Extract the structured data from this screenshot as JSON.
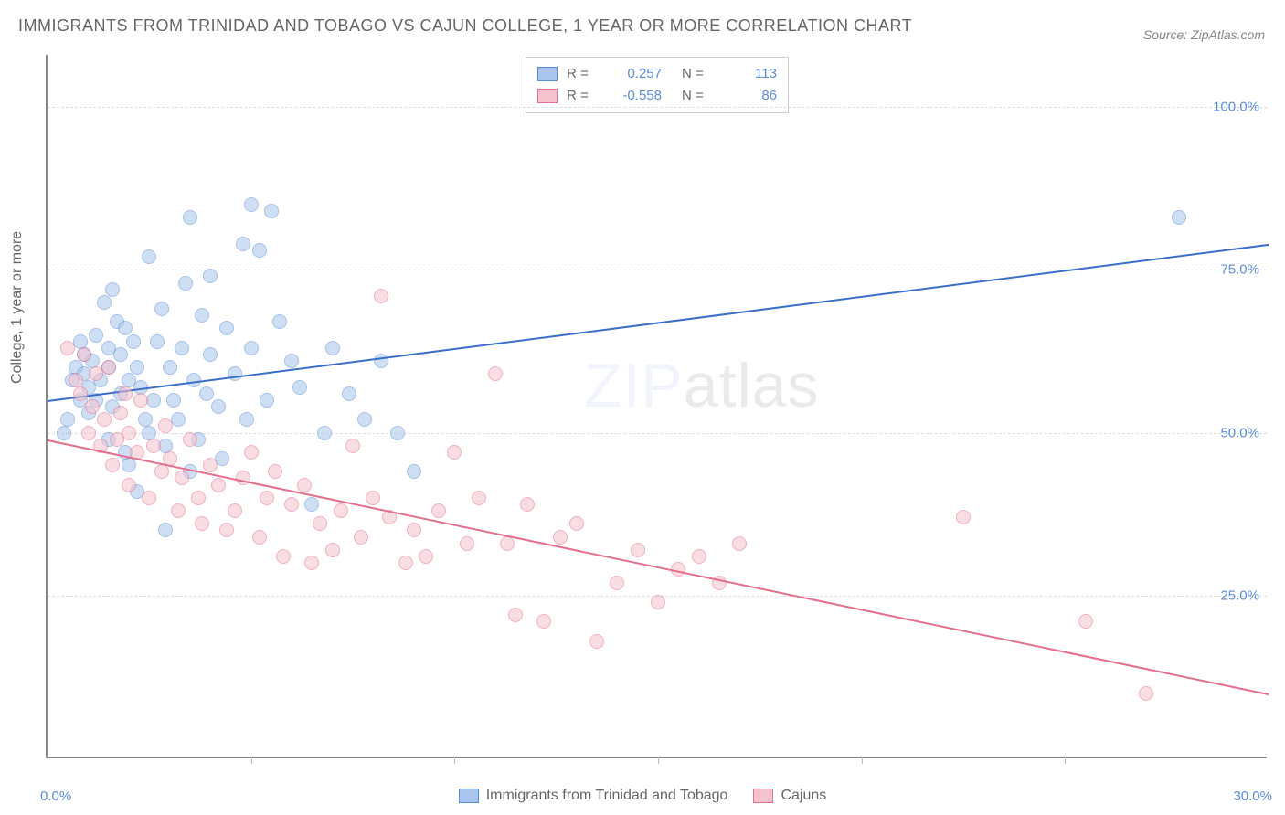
{
  "title": "IMMIGRANTS FROM TRINIDAD AND TOBAGO VS CAJUN COLLEGE, 1 YEAR OR MORE CORRELATION CHART",
  "source": "Source: ZipAtlas.com",
  "y_label": "College, 1 year or more",
  "watermark": {
    "prefix": "ZIP",
    "suffix": "atlas"
  },
  "chart": {
    "type": "scatter",
    "xlim": [
      0,
      30
    ],
    "ylim": [
      0,
      108
    ],
    "x_axis_labels": [
      {
        "v": 0,
        "label": "0.0%",
        "pos": "outer-left"
      },
      {
        "v": 30,
        "label": "30.0%",
        "pos": "outer-right"
      }
    ],
    "x_tick_positions": [
      5,
      10,
      15,
      20,
      25
    ],
    "y_ticks": [
      {
        "v": 25,
        "label": "25.0%"
      },
      {
        "v": 50,
        "label": "50.0%"
      },
      {
        "v": 75,
        "label": "75.0%"
      },
      {
        "v": 100,
        "label": "100.0%"
      }
    ],
    "background_color": "#ffffff",
    "grid_color": "#dddddd",
    "axis_color": "#888888",
    "tick_label_color": "#5b8dd6",
    "marker_radius": 8,
    "marker_opacity": 0.55,
    "series": [
      {
        "name": "Immigrants from Trinidad and Tobago",
        "fill": "#a9c5eb",
        "stroke": "#5b8dd6",
        "line_color": "#3a6fc9",
        "r": 0.257,
        "n": 113,
        "trend": {
          "x1": 0,
          "y1": 55,
          "x2": 30,
          "y2": 79
        },
        "points": [
          [
            0.4,
            50
          ],
          [
            0.5,
            52
          ],
          [
            0.6,
            58
          ],
          [
            0.7,
            60
          ],
          [
            0.8,
            64
          ],
          [
            0.8,
            55
          ],
          [
            0.9,
            59
          ],
          [
            0.9,
            62
          ],
          [
            1.0,
            53
          ],
          [
            1.0,
            57
          ],
          [
            1.1,
            61
          ],
          [
            1.2,
            65
          ],
          [
            1.2,
            55
          ],
          [
            1.3,
            58
          ],
          [
            1.4,
            70
          ],
          [
            1.5,
            49
          ],
          [
            1.5,
            60
          ],
          [
            1.5,
            63
          ],
          [
            1.6,
            72
          ],
          [
            1.6,
            54
          ],
          [
            1.7,
            67
          ],
          [
            1.8,
            56
          ],
          [
            1.8,
            62
          ],
          [
            1.9,
            47
          ],
          [
            1.9,
            66
          ],
          [
            2.0,
            58
          ],
          [
            2.0,
            45
          ],
          [
            2.1,
            64
          ],
          [
            2.2,
            41
          ],
          [
            2.2,
            60
          ],
          [
            2.3,
            57
          ],
          [
            2.4,
            52
          ],
          [
            2.5,
            77
          ],
          [
            2.5,
            50
          ],
          [
            2.6,
            55
          ],
          [
            2.7,
            64
          ],
          [
            2.8,
            69
          ],
          [
            2.9,
            35
          ],
          [
            2.9,
            48
          ],
          [
            3.0,
            60
          ],
          [
            3.1,
            55
          ],
          [
            3.2,
            52
          ],
          [
            3.3,
            63
          ],
          [
            3.4,
            73
          ],
          [
            3.5,
            44
          ],
          [
            3.5,
            83
          ],
          [
            3.6,
            58
          ],
          [
            3.7,
            49
          ],
          [
            3.8,
            68
          ],
          [
            3.9,
            56
          ],
          [
            4.0,
            62
          ],
          [
            4.0,
            74
          ],
          [
            4.2,
            54
          ],
          [
            4.3,
            46
          ],
          [
            4.4,
            66
          ],
          [
            4.6,
            59
          ],
          [
            4.8,
            79
          ],
          [
            4.9,
            52
          ],
          [
            5.0,
            85
          ],
          [
            5.0,
            63
          ],
          [
            5.2,
            78
          ],
          [
            5.4,
            55
          ],
          [
            5.5,
            84
          ],
          [
            5.7,
            67
          ],
          [
            6.0,
            61
          ],
          [
            6.2,
            57
          ],
          [
            6.5,
            39
          ],
          [
            6.8,
            50
          ],
          [
            7.0,
            63
          ],
          [
            7.4,
            56
          ],
          [
            7.8,
            52
          ],
          [
            8.2,
            61
          ],
          [
            8.6,
            50
          ],
          [
            9.0,
            44
          ],
          [
            27.8,
            83
          ]
        ]
      },
      {
        "name": "Cajuns",
        "fill": "#f4c2cd",
        "stroke": "#e56f8c",
        "line_color": "#e56f8c",
        "r": -0.558,
        "n": 86,
        "trend": {
          "x1": 0,
          "y1": 49,
          "x2": 30,
          "y2": 10
        },
        "points": [
          [
            0.5,
            63
          ],
          [
            0.7,
            58
          ],
          [
            0.8,
            56
          ],
          [
            0.9,
            62
          ],
          [
            1.0,
            50
          ],
          [
            1.1,
            54
          ],
          [
            1.2,
            59
          ],
          [
            1.3,
            48
          ],
          [
            1.4,
            52
          ],
          [
            1.5,
            60
          ],
          [
            1.6,
            45
          ],
          [
            1.7,
            49
          ],
          [
            1.8,
            53
          ],
          [
            1.9,
            56
          ],
          [
            2.0,
            50
          ],
          [
            2.0,
            42
          ],
          [
            2.2,
            47
          ],
          [
            2.3,
            55
          ],
          [
            2.5,
            40
          ],
          [
            2.6,
            48
          ],
          [
            2.8,
            44
          ],
          [
            2.9,
            51
          ],
          [
            3.0,
            46
          ],
          [
            3.2,
            38
          ],
          [
            3.3,
            43
          ],
          [
            3.5,
            49
          ],
          [
            3.7,
            40
          ],
          [
            3.8,
            36
          ],
          [
            4.0,
            45
          ],
          [
            4.2,
            42
          ],
          [
            4.4,
            35
          ],
          [
            4.6,
            38
          ],
          [
            4.8,
            43
          ],
          [
            5.0,
            47
          ],
          [
            5.2,
            34
          ],
          [
            5.4,
            40
          ],
          [
            5.6,
            44
          ],
          [
            5.8,
            31
          ],
          [
            6.0,
            39
          ],
          [
            6.3,
            42
          ],
          [
            6.5,
            30
          ],
          [
            6.7,
            36
          ],
          [
            7.0,
            32
          ],
          [
            7.2,
            38
          ],
          [
            7.5,
            48
          ],
          [
            7.7,
            34
          ],
          [
            8.0,
            40
          ],
          [
            8.2,
            71
          ],
          [
            8.4,
            37
          ],
          [
            8.8,
            30
          ],
          [
            9.0,
            35
          ],
          [
            9.3,
            31
          ],
          [
            9.6,
            38
          ],
          [
            10.0,
            47
          ],
          [
            10.3,
            33
          ],
          [
            10.6,
            40
          ],
          [
            11.0,
            59
          ],
          [
            11.3,
            33
          ],
          [
            11.5,
            22
          ],
          [
            11.8,
            39
          ],
          [
            12.2,
            21
          ],
          [
            12.6,
            34
          ],
          [
            13.0,
            36
          ],
          [
            13.5,
            18
          ],
          [
            14.0,
            27
          ],
          [
            14.5,
            32
          ],
          [
            15.0,
            24
          ],
          [
            15.5,
            29
          ],
          [
            16.0,
            31
          ],
          [
            16.5,
            27
          ],
          [
            17.0,
            33
          ],
          [
            22.5,
            37
          ],
          [
            25.5,
            21
          ],
          [
            27.0,
            10
          ]
        ]
      }
    ]
  },
  "legend_bottom": [
    {
      "label": "Immigrants from Trinidad and Tobago",
      "series": 0
    },
    {
      "label": "Cajuns",
      "series": 1
    }
  ]
}
